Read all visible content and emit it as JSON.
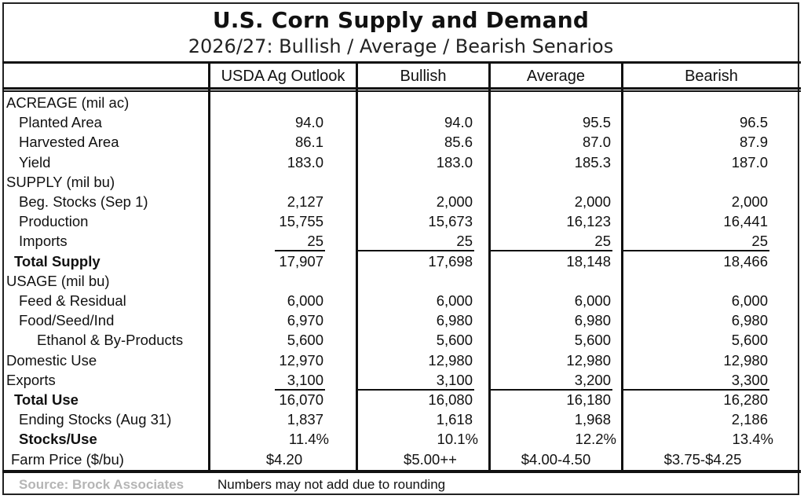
{
  "title": "U.S. Corn Supply and Demand",
  "subtitle": "2026/27: Bullish / Average / Bearish Senarios",
  "columns": [
    "USDA Ag Outlook",
    "Bullish",
    "Average",
    "Bearish"
  ],
  "rows": [
    {
      "label": "ACREAGE (mil ac)",
      "style": "section",
      "values": [
        "",
        "",
        "",
        ""
      ]
    },
    {
      "label": "Planted Area",
      "style": "indent",
      "values": [
        "94.0",
        "94.0",
        "95.5",
        "96.5"
      ]
    },
    {
      "label": "Harvested Area",
      "style": "indent",
      "values": [
        "86.1",
        "85.6",
        "87.0",
        "87.9"
      ]
    },
    {
      "label": "Yield",
      "style": "indent",
      "values": [
        "183.0",
        "183.0",
        "185.3",
        "187.0"
      ]
    },
    {
      "label": "SUPPLY (mil bu)",
      "style": "section",
      "values": [
        "",
        "",
        "",
        ""
      ]
    },
    {
      "label": "Beg. Stocks (Sep 1)",
      "style": "indent",
      "values": [
        "2,127",
        "2,000",
        "2,000",
        "2,000"
      ]
    },
    {
      "label": "Production",
      "style": "indent",
      "values": [
        "15,755",
        "15,673",
        "16,123",
        "16,441"
      ]
    },
    {
      "label": "Imports",
      "style": "indent",
      "values": [
        "25",
        "25",
        "25",
        "25"
      ],
      "underline": true
    },
    {
      "label": "Total Supply",
      "style": "bold",
      "values": [
        "17,907",
        "17,698",
        "18,148",
        "18,466"
      ]
    },
    {
      "label": "USAGE (mil bu)",
      "style": "section",
      "values": [
        "",
        "",
        "",
        ""
      ]
    },
    {
      "label": "Feed & Residual",
      "style": "indent",
      "values": [
        "6,000",
        "6,000",
        "6,000",
        "6,000"
      ]
    },
    {
      "label": "Food/Seed/Ind",
      "style": "indent",
      "values": [
        "6,970",
        "6,980",
        "6,980",
        "6,980"
      ]
    },
    {
      "label": "Ethanol & By-Products",
      "style": "indent2",
      "values": [
        "5,600",
        "5,600",
        "5,600",
        "5,600"
      ]
    },
    {
      "label": "Domestic Use",
      "style": "section",
      "values": [
        "12,970",
        "12,980",
        "12,980",
        "12,980"
      ]
    },
    {
      "label": "Exports",
      "style": "section",
      "values": [
        "3,100",
        "3,100",
        "3,200",
        "3,300"
      ],
      "underline": true
    },
    {
      "label": "Total Use",
      "style": "bold",
      "values": [
        "16,070",
        "16,080",
        "16,180",
        "16,280"
      ]
    },
    {
      "label": "Ending Stocks (Aug 31)",
      "style": "indent",
      "values": [
        "1,837",
        "1,618",
        "1,968",
        "2,186"
      ]
    },
    {
      "label": "Stocks/Use",
      "style": "bold-indent",
      "values": [
        "11.4%",
        "10.1%",
        "12.2%",
        "13.4%"
      ],
      "percent": true
    },
    {
      "label": "Farm Price ($/bu)",
      "style": "price",
      "values": [
        "$4.20",
        "$5.00++",
        "$4.00-4.50",
        "$3.75-$4.25"
      ],
      "price": true
    }
  ],
  "footer": {
    "source": "Source: Brock Associates",
    "note": "Numbers may not add due to rounding"
  },
  "colors": {
    "border": "#111111",
    "source_text": "#b5b5b5"
  }
}
